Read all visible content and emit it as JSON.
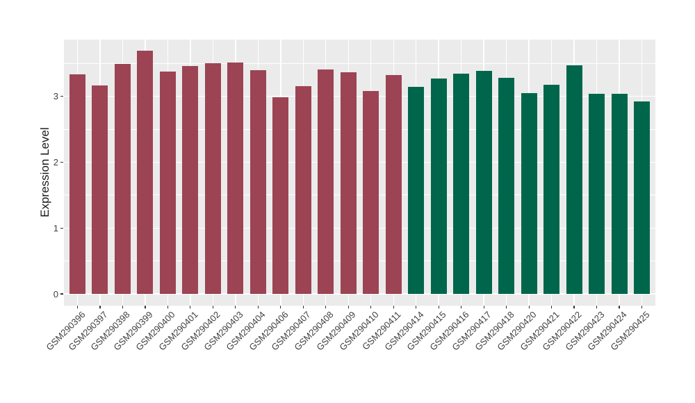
{
  "figure": {
    "background_color": "#FFFFFF",
    "panel_background_color": "#EBEBEB",
    "gridline_color": "#FFFFFF",
    "axis_text_color": "#404040",
    "axis_title_color": "#1A1A1A"
  },
  "chart_data": {
    "type": "bar",
    "title": "",
    "xlabel": "",
    "ylabel": "Expression Level",
    "legend": "none",
    "grid": "ggplot2-grey-theme: white major+minor horizontal lines, white vertical lines at category centers",
    "ylim": [
      -0.19,
      3.85
    ],
    "yticks": [
      0,
      1,
      2,
      3
    ],
    "ytick_labels": [
      "0",
      "1",
      "2",
      "3"
    ],
    "y_minor_ticks": [
      0.5,
      1.5,
      2.5,
      3.5
    ],
    "categories": [
      "GSM290396",
      "GSM290397",
      "GSM290398",
      "GSM290399",
      "GSM290400",
      "GSM290401",
      "GSM290402",
      "GSM290403",
      "GSM290404",
      "GSM290406",
      "GSM290407",
      "GSM290408",
      "GSM290409",
      "GSM290410",
      "GSM290411",
      "GSM290414",
      "GSM290415",
      "GSM290416",
      "GSM290417",
      "GSM290418",
      "GSM290420",
      "GSM290421",
      "GSM290422",
      "GSM290423",
      "GSM290424",
      "GSM290425"
    ],
    "values": [
      3.33,
      3.16,
      3.49,
      3.69,
      3.38,
      3.46,
      3.5,
      3.51,
      3.4,
      2.98,
      3.15,
      3.41,
      3.36,
      3.08,
      3.32,
      3.14,
      3.27,
      3.34,
      3.39,
      3.28,
      3.05,
      3.17,
      3.47,
      3.04,
      3.04,
      2.92
    ],
    "bar_groups": [
      "group1",
      "group1",
      "group1",
      "group1",
      "group1",
      "group1",
      "group1",
      "group1",
      "group1",
      "group1",
      "group1",
      "group1",
      "group1",
      "group1",
      "group1",
      "group2",
      "group2",
      "group2",
      "group2",
      "group2",
      "group2",
      "group2",
      "group2",
      "group2",
      "group2",
      "group2"
    ],
    "group_colors": {
      "group1": "#9C4453",
      "group2": "#00664B"
    }
  }
}
